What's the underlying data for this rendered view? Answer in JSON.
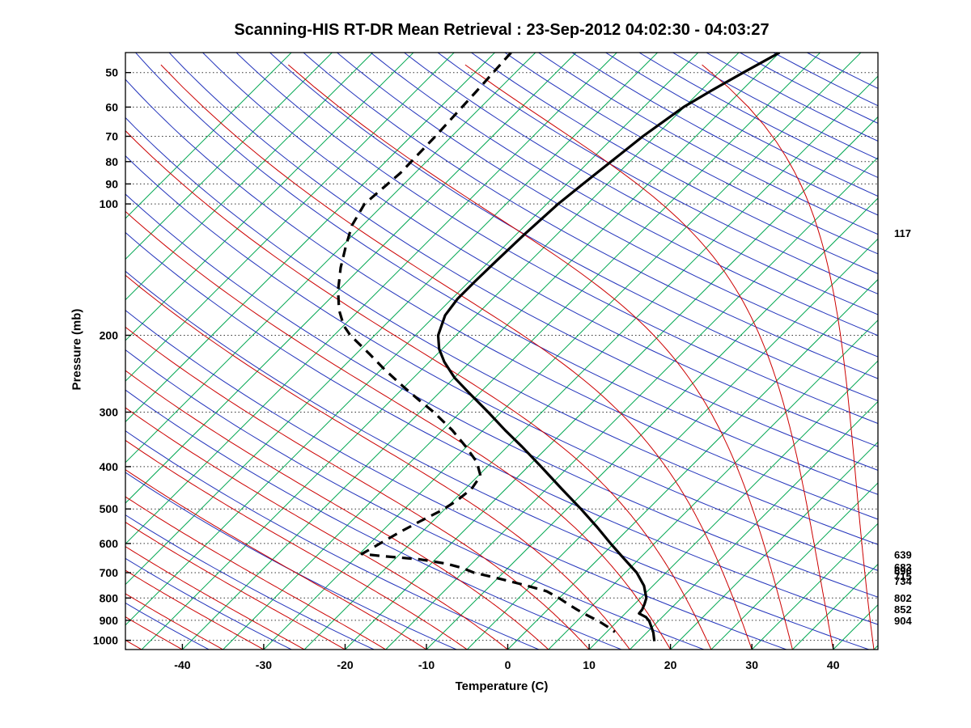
{
  "title": "Scanning-HIS RT-DR Mean Retrieval : 23-Sep-2012 04:02:30 - 04:03:27",
  "chart_data": {
    "type": "line",
    "variant": "skew-t-log-p",
    "title": "Scanning-HIS RT-DR Mean Retrieval : 23-Sep-2012 04:02:30 - 04:03:27",
    "xlabel": "Temperature (C)",
    "ylabel": "Pressure (mb)",
    "x_ticks": [
      -40,
      -30,
      -20,
      -10,
      0,
      10,
      20,
      30,
      40
    ],
    "y_ticks": [
      50,
      60,
      70,
      80,
      90,
      100,
      200,
      300,
      400,
      500,
      600,
      700,
      800,
      900,
      1000
    ],
    "pressure_range_mb": [
      45,
      1050
    ],
    "temp_range_c": [
      -47,
      45.5
    ],
    "skew_deg": 45,
    "grid": "dotted horizontal lines at labeled pressure levels",
    "legend_position": "none",
    "right_pressure_labels": [
      "117",
      "639",
      "683",
      "696",
      "715",
      "734",
      "802",
      "852",
      "904"
    ],
    "right_pressure_values": [
      117,
      639,
      683,
      696,
      715,
      734,
      802,
      852,
      904
    ],
    "series": [
      {
        "name": "temperature",
        "line": "solid",
        "color": "#000000",
        "width": 3.2,
        "points_p_t": [
          [
            45,
            -40
          ],
          [
            50,
            -42
          ],
          [
            55,
            -43.7
          ],
          [
            60,
            -45.1
          ],
          [
            70,
            -46.5
          ],
          [
            80,
            -47.3
          ],
          [
            90,
            -48
          ],
          [
            100,
            -48.6
          ],
          [
            117,
            -49
          ],
          [
            135,
            -49.2
          ],
          [
            150,
            -49.3
          ],
          [
            165,
            -49.3
          ],
          [
            180,
            -48.8
          ],
          [
            200,
            -47.2
          ],
          [
            215,
            -45.4
          ],
          [
            230,
            -43.2
          ],
          [
            250,
            -40
          ],
          [
            270,
            -36.5
          ],
          [
            300,
            -31.6
          ],
          [
            330,
            -27.3
          ],
          [
            360,
            -23.2
          ],
          [
            400,
            -18.4
          ],
          [
            450,
            -13.1
          ],
          [
            500,
            -8.3
          ],
          [
            550,
            -4.1
          ],
          [
            600,
            -0.4
          ],
          [
            650,
            3.1
          ],
          [
            700,
            6.4
          ],
          [
            750,
            8.9
          ],
          [
            800,
            10.7
          ],
          [
            825,
            11.2
          ],
          [
            850,
            11.6
          ],
          [
            868,
            11.7
          ],
          [
            885,
            13
          ],
          [
            904,
            13.9
          ],
          [
            930,
            14.8
          ],
          [
            960,
            15.8
          ],
          [
            1005,
            17
          ]
        ]
      },
      {
        "name": "dewpoint",
        "line": "dashed",
        "color": "#000000",
        "width": 3.2,
        "points_p_t": [
          [
            45,
            -73
          ],
          [
            55,
            -72.5
          ],
          [
            70,
            -72
          ],
          [
            85,
            -71.8
          ],
          [
            100,
            -72.4
          ],
          [
            112,
            -71.3
          ],
          [
            125,
            -69.5
          ],
          [
            140,
            -67.5
          ],
          [
            158,
            -65
          ],
          [
            175,
            -62.5
          ],
          [
            190,
            -60
          ],
          [
            200,
            -58
          ],
          [
            220,
            -53.5
          ],
          [
            240,
            -49.5
          ],
          [
            262,
            -45.2
          ],
          [
            282,
            -41.5
          ],
          [
            300,
            -38.3
          ],
          [
            330,
            -33.8
          ],
          [
            360,
            -30.1
          ],
          [
            390,
            -26.9
          ],
          [
            420,
            -24.7
          ],
          [
            450,
            -24.2
          ],
          [
            480,
            -24.6
          ],
          [
            505,
            -25.3
          ],
          [
            535,
            -26.6
          ],
          [
            565,
            -27.7
          ],
          [
            595,
            -28.6
          ],
          [
            620,
            -29.3
          ],
          [
            634,
            -29.7
          ],
          [
            641,
            -27
          ],
          [
            652,
            -22
          ],
          [
            667,
            -18.2
          ],
          [
            683,
            -15.6
          ],
          [
            700,
            -13.6
          ],
          [
            722,
            -9.8
          ],
          [
            747,
            -5.9
          ],
          [
            772,
            -2.4
          ],
          [
            802,
            0.1
          ],
          [
            827,
            1.9
          ],
          [
            852,
            3.7
          ],
          [
            877,
            5.6
          ],
          [
            904,
            7.7
          ],
          [
            930,
            9.4
          ],
          [
            957,
            11
          ]
        ]
      }
    ],
    "reference_lines": {
      "isotherms_c": {
        "color": "#00a651",
        "from": -100,
        "to": 45,
        "step": 5
      },
      "dry_adiabats_theta_c": {
        "color": "#2233bb",
        "from": -70,
        "to": 300,
        "step": 10
      },
      "moist_adiabats_t0_c": {
        "color": "#cc0000",
        "from": -60,
        "to": 45,
        "step": 5
      }
    },
    "colors": {
      "grid": "#333333",
      "axis": "#000000",
      "profile": "#000000"
    }
  }
}
